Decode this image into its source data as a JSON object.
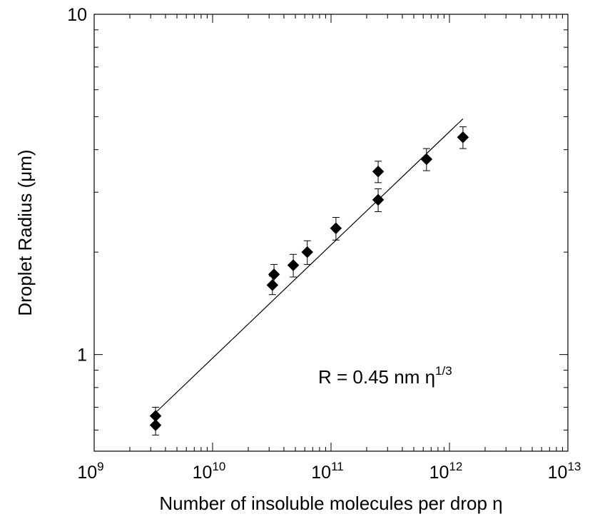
{
  "chart_data": {
    "type": "scatter",
    "title": "",
    "xlabel": "Number of insoluble molecules per drop  η",
    "ylabel": "Droplet Radius (μm)",
    "xscale": "log",
    "yscale": "log",
    "xlim": [
      1000000000,
      10000000000000
    ],
    "ylim": [
      0.52,
      10
    ],
    "x_ticks": [
      {
        "value": 1000000000,
        "base": "10",
        "exp": "9"
      },
      {
        "value": 10000000000,
        "base": "10",
        "exp": "10"
      },
      {
        "value": 100000000000,
        "base": "10",
        "exp": "11"
      },
      {
        "value": 1000000000000,
        "base": "10",
        "exp": "12"
      },
      {
        "value": 10000000000000,
        "base": "10",
        "exp": "13"
      }
    ],
    "y_ticks": [
      {
        "value": 1,
        "label": "1"
      },
      {
        "value": 10,
        "label": "10"
      }
    ],
    "grid": false,
    "series": [
      {
        "marker": "diamond",
        "color": "#000000",
        "points": [
          {
            "x": 3300000000,
            "y": 0.66,
            "err": 0.04
          },
          {
            "x": 3300000000,
            "y": 0.62,
            "err": 0.04
          },
          {
            "x": 32000000000,
            "y": 1.6,
            "err": 0.1
          },
          {
            "x": 33000000000,
            "y": 1.72,
            "err": 0.12
          },
          {
            "x": 48000000000,
            "y": 1.83,
            "err": 0.14
          },
          {
            "x": 63000000000,
            "y": 2.0,
            "err": 0.16
          },
          {
            "x": 110000000000,
            "y": 2.35,
            "err": 0.18
          },
          {
            "x": 250000000000,
            "y": 3.45,
            "err": 0.25
          },
          {
            "x": 250000000000,
            "y": 2.85,
            "err": 0.22
          },
          {
            "x": 640000000000,
            "y": 3.75,
            "err": 0.28
          },
          {
            "x": 1300000000000,
            "y": 4.35,
            "err": 0.32
          }
        ]
      }
    ],
    "fit_line": {
      "x": [
        3300000000,
        1300000000000
      ],
      "y": [
        0.675,
        4.93
      ],
      "color": "#000000"
    },
    "annotation": {
      "text": "R = 0.45 nm  η",
      "sup": "1/3"
    }
  }
}
